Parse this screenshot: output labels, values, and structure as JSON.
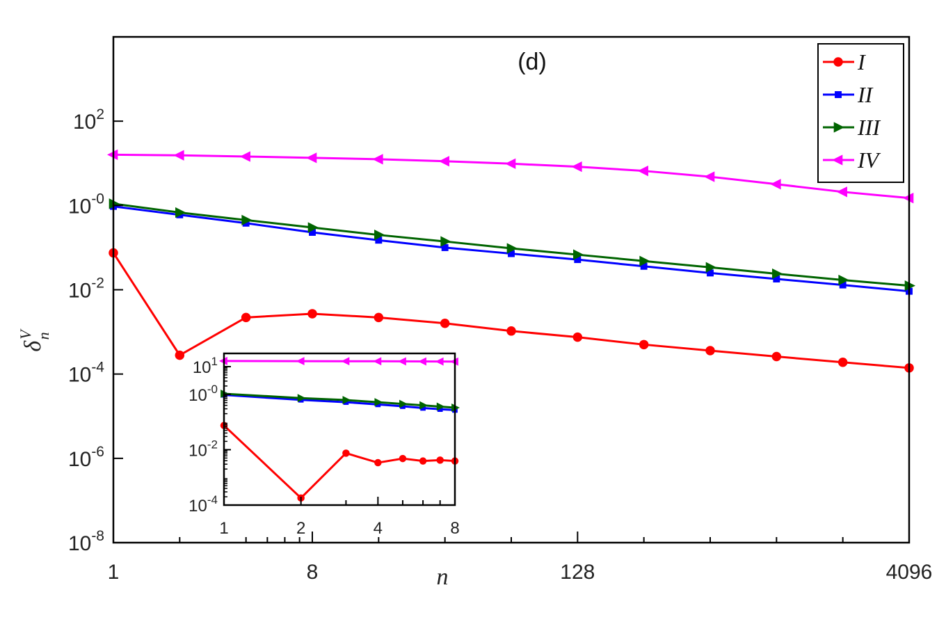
{
  "chart_data": {
    "type": "line",
    "panel_label": "(d)",
    "title": "",
    "xlabel": "n",
    "ylabel": "δ_n^V",
    "ylabel_main": "δ",
    "ylabel_sub": "n",
    "ylabel_sup": "V",
    "xscale": "log2",
    "yscale": "log10",
    "xlim": [
      1,
      4096
    ],
    "ylim": [
      1e-08,
      10000.0
    ],
    "x_ticks": [
      {
        "value": 1,
        "label": "1"
      },
      {
        "value": 8,
        "label": "8"
      },
      {
        "value": 128,
        "label": "128"
      },
      {
        "value": 4096,
        "label": "4096"
      }
    ],
    "y_ticks": [
      {
        "value": 1e-08,
        "base": "10",
        "exp": "-8"
      },
      {
        "value": 1e-06,
        "base": "10",
        "exp": "-6"
      },
      {
        "value": 0.0001,
        "base": "10",
        "exp": "-4"
      },
      {
        "value": 0.01,
        "base": "10",
        "exp": "-2"
      },
      {
        "value": 1,
        "base": "10",
        "exp": "-0"
      },
      {
        "value": 100,
        "base": "10",
        "exp": "2"
      }
    ],
    "legend_position": "top-right",
    "x": [
      1,
      2,
      4,
      8,
      16,
      32,
      64,
      128,
      256,
      512,
      1024,
      2048,
      4096
    ],
    "series": [
      {
        "name": "I",
        "color": "#ff0000",
        "marker": "circle",
        "values": [
          0.075,
          0.00028,
          0.0022,
          0.0027,
          0.0022,
          0.0016,
          0.00105,
          0.00075,
          0.0005,
          0.00036,
          0.00026,
          0.00019,
          0.00014
        ]
      },
      {
        "name": "II",
        "color": "#0000ff",
        "marker": "square",
        "values": [
          0.95,
          0.6,
          0.38,
          0.23,
          0.15,
          0.1,
          0.072,
          0.052,
          0.036,
          0.025,
          0.018,
          0.013,
          0.0092
        ]
      },
      {
        "name": "III",
        "color": "#006400",
        "marker": "triangle-right",
        "values": [
          1.1,
          0.68,
          0.45,
          0.3,
          0.2,
          0.14,
          0.096,
          0.068,
          0.048,
          0.034,
          0.024,
          0.017,
          0.0125
        ]
      },
      {
        "name": "IV",
        "color": "#ff00ff",
        "marker": "triangle-left",
        "values": [
          16,
          15.5,
          14.5,
          13.5,
          12.5,
          11.2,
          9.8,
          8.3,
          6.6,
          4.8,
          3.2,
          2.1,
          1.5
        ]
      }
    ],
    "inset": {
      "xscale": "log2",
      "yscale": "log10",
      "xlim": [
        1,
        8
      ],
      "ylim": [
        0.0001,
        30
      ],
      "x_ticks": [
        {
          "value": 1,
          "label": "1"
        },
        {
          "value": 2,
          "label": "2"
        },
        {
          "value": 4,
          "label": "4"
        },
        {
          "value": 8,
          "label": "8"
        }
      ],
      "y_ticks": [
        {
          "value": 0.0001,
          "base": "10",
          "exp": "-4"
        },
        {
          "value": 0.01,
          "base": "10",
          "exp": "-2"
        },
        {
          "value": 1,
          "base": "10",
          "exp": "-0"
        },
        {
          "value": 10,
          "base": "10",
          "exp": "1"
        }
      ],
      "x": [
        1,
        2,
        3,
        4,
        5,
        6,
        7,
        8
      ],
      "series": [
        {
          "name": "I",
          "color": "#ff0000",
          "marker": "circle",
          "values": [
            0.075,
            0.00018,
            0.0075,
            0.0034,
            0.0048,
            0.0039,
            0.0042,
            0.0039
          ]
        },
        {
          "name": "II",
          "color": "#0000ff",
          "marker": "square",
          "values": [
            0.95,
            0.63,
            0.52,
            0.43,
            0.37,
            0.32,
            0.29,
            0.27
          ]
        },
        {
          "name": "III",
          "color": "#006400",
          "marker": "triangle-right",
          "values": [
            1.05,
            0.73,
            0.62,
            0.52,
            0.45,
            0.4,
            0.36,
            0.33
          ]
        },
        {
          "name": "IV",
          "color": "#ff00ff",
          "marker": "triangle-left",
          "values": [
            16,
            15.8,
            15.7,
            15.6,
            15.5,
            15.4,
            15.3,
            15.2
          ]
        }
      ]
    }
  }
}
